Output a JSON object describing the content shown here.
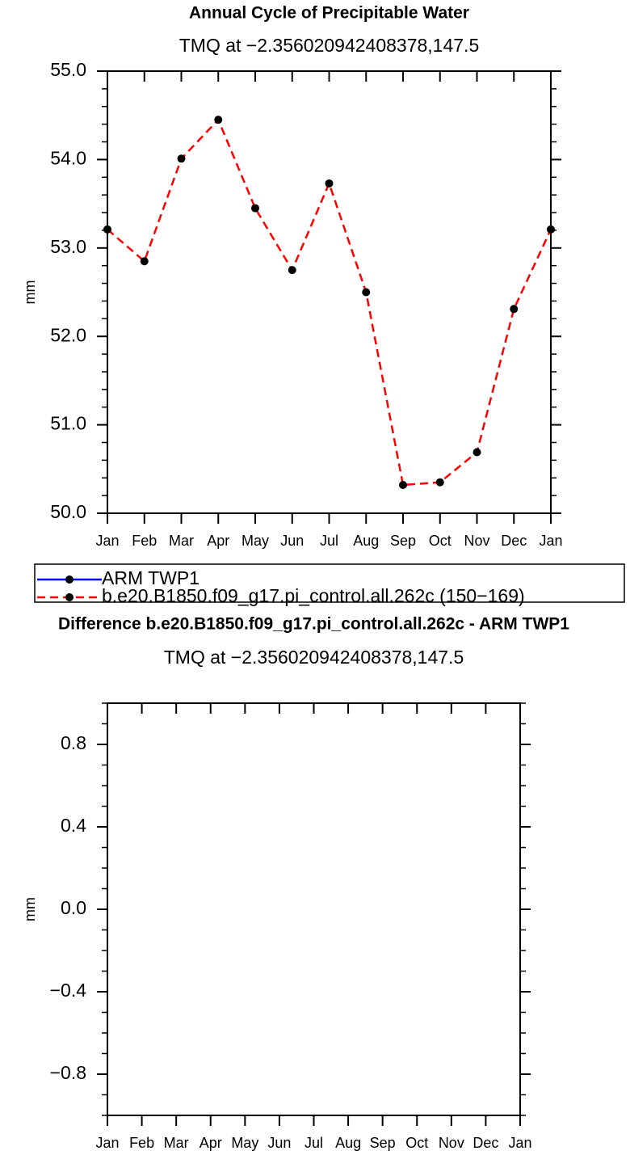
{
  "chart_data": [
    {
      "type": "line",
      "title": "Annual Cycle of Precipitable Water",
      "subtitle": "TMQ at −2.356020942408378,147.5",
      "y_label": "mm",
      "categories": [
        "Jan",
        "Feb",
        "Mar",
        "Apr",
        "May",
        "Jun",
        "Jul",
        "Aug",
        "Sep",
        "Oct",
        "Nov",
        "Dec",
        "Jan"
      ],
      "ylim": [
        50,
        55
      ],
      "yticks": [
        {
          "value": 50,
          "label": "50.0"
        },
        {
          "value": 51,
          "label": "51.0"
        },
        {
          "value": 52,
          "label": "52.0"
        },
        {
          "value": 53,
          "label": "53.0"
        },
        {
          "value": 54,
          "label": "54.0"
        },
        {
          "value": 55,
          "label": "55.0"
        }
      ],
      "series": [
        {
          "name": "ARM TWP1",
          "color": "#0000ff",
          "line_style": "solid",
          "values": [
            null,
            null,
            null,
            null,
            null,
            null,
            null,
            null,
            null,
            null,
            null,
            null,
            null
          ]
        },
        {
          "name": "b.e20.B1850.f09_g17.pi_control.all.262c (150−169)",
          "color": "#ff0000",
          "line_style": "dashed",
          "values": [
            53.21,
            52.85,
            54.01,
            54.45,
            53.45,
            52.75,
            53.73,
            52.5,
            50.32,
            50.35,
            50.69,
            52.31,
            53.21
          ]
        }
      ]
    },
    {
      "type": "line",
      "title": "Difference b.e20.B1850.f09_g17.pi_control.all.262c - ARM TWP1",
      "subtitle": "TMQ at −2.356020942408378,147.5",
      "y_label": "mm",
      "categories": [
        "Jan",
        "Feb",
        "Mar",
        "Apr",
        "May",
        "Jun",
        "Jul",
        "Aug",
        "Sep",
        "Oct",
        "Nov",
        "Dec",
        "Jan"
      ],
      "ylim": [
        -1,
        1
      ],
      "yticks": [
        {
          "value": -0.8,
          "label": "−0.8"
        },
        {
          "value": -0.4,
          "label": "−0.4"
        },
        {
          "value": 0,
          "label": "0.0"
        },
        {
          "value": 0.4,
          "label": "0.4"
        },
        {
          "value": 0.8,
          "label": "0.8"
        }
      ],
      "series": []
    }
  ]
}
